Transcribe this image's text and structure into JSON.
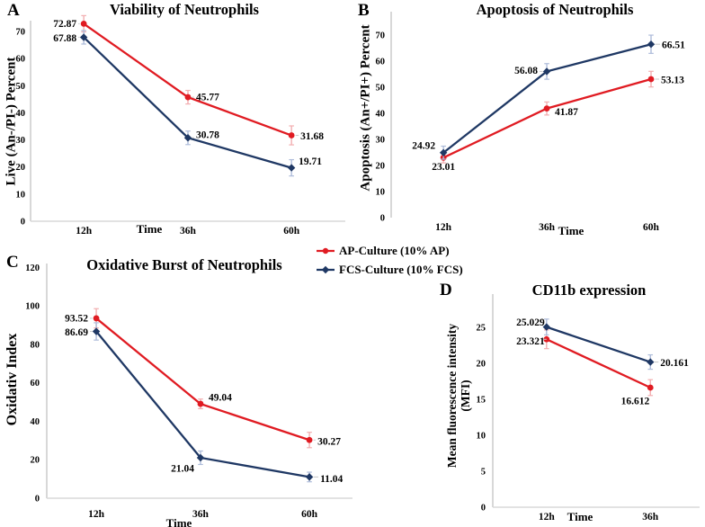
{
  "figure": {
    "background": "#ffffff",
    "legend": {
      "items": [
        {
          "key": "ap",
          "label": "AP-Culture (10% AP)"
        },
        {
          "key": "fcs",
          "label": "FCS-Culture (10% FCS)"
        }
      ]
    },
    "colors": {
      "ap": "#e01b22",
      "fcs": "#1f3864",
      "ap_error": "#f2aeb0",
      "fcs_error": "#aebcda",
      "axis": "#c4c4c4",
      "baseline": "#d9d9d9",
      "leader": "#c8c8c8",
      "text": "#000000"
    }
  },
  "chart_data": [
    {
      "type": "line",
      "panel": "A",
      "title": "Viability of Neutrophils",
      "xlabel": "Time",
      "ylabel": "Live (An-/PI-) Percent",
      "categories": [
        "12h",
        "36h",
        "60h"
      ],
      "ylim": [
        0,
        74
      ],
      "yticks": [
        0,
        10,
        20,
        30,
        40,
        50,
        60,
        70
      ],
      "grid": false,
      "legend_position": "center-of-figure",
      "series": [
        {
          "key": "ap",
          "name": "AP-Culture (10% AP)",
          "marker": "circle",
          "values": [
            72.87,
            45.77,
            31.68
          ],
          "errors": [
            3,
            2.5,
            3.5
          ],
          "labels": [
            "72.87",
            "45.77",
            "31.68"
          ],
          "label_pos": [
            {
              "a": "end",
              "dx": -8,
              "dy": 0
            },
            {
              "a": "start",
              "dx": 9,
              "dy": 0
            },
            {
              "a": "start",
              "dx": 10,
              "dy": 1
            }
          ]
        },
        {
          "key": "fcs",
          "name": "FCS-Culture (10% FCS)",
          "marker": "diamond",
          "values": [
            67.88,
            30.78,
            19.71
          ],
          "errors": [
            2.5,
            2.5,
            3
          ],
          "labels": [
            "67.88",
            "30.78",
            "19.71"
          ],
          "label_pos": [
            {
              "a": "end",
              "dx": -8,
              "dy": 1
            },
            {
              "a": "start",
              "dx": 9,
              "dy": -3
            },
            {
              "a": "start",
              "dx": 8,
              "dy": -7
            }
          ]
        }
      ]
    },
    {
      "type": "line",
      "panel": "B",
      "title": "Apoptosis of Neutrophils",
      "xlabel": "Time",
      "ylabel": "Apoptosis (An+/PI+) Percent",
      "categories": [
        "12h",
        "36h",
        "60h"
      ],
      "ylim": [
        0,
        79
      ],
      "yticks": [
        0,
        10,
        20,
        30,
        40,
        50,
        60,
        70
      ],
      "grid": false,
      "series": [
        {
          "key": "ap",
          "name": "AP-Culture (10% AP)",
          "marker": "circle",
          "values": [
            23.01,
            41.87,
            53.13
          ],
          "errors": [
            2,
            2.5,
            3
          ],
          "labels": [
            "23.01",
            "41.87",
            "53.13"
          ],
          "label_pos": [
            {
              "a": "middle",
              "dx": 0,
              "dy": 10
            },
            {
              "a": "start",
              "dx": 9,
              "dy": 4
            },
            {
              "a": "start",
              "dx": 11,
              "dy": 1
            }
          ]
        },
        {
          "key": "fcs",
          "name": "FCS-Culture (10% FCS)",
          "marker": "diamond",
          "values": [
            24.92,
            56.08,
            66.51
          ],
          "errors": [
            2.5,
            3,
            3.5
          ],
          "labels": [
            "24.92",
            "56.08",
            "66.51"
          ],
          "label_pos": [
            {
              "a": "end",
              "dx": -9,
              "dy": -8
            },
            {
              "a": "end",
              "dx": -10,
              "dy": -1
            },
            {
              "a": "start",
              "dx": 12,
              "dy": 1
            }
          ]
        }
      ]
    },
    {
      "type": "line",
      "panel": "C",
      "title": "Oxidative Burst of Neutrophils",
      "xlabel": "Time",
      "ylabel": "Oxidativ Index",
      "categories": [
        "12h",
        "36h",
        "60h"
      ],
      "ylim": [
        0,
        122
      ],
      "yticks": [
        0,
        20,
        40,
        60,
        80,
        100,
        120
      ],
      "grid": false,
      "series": [
        {
          "key": "ap",
          "name": "AP-Culture (10% AP)",
          "marker": "circle",
          "values": [
            93.52,
            49.04,
            30.27
          ],
          "errors": [
            5,
            2.5,
            4
          ],
          "labels": [
            "93.52",
            "49.04",
            "30.27"
          ],
          "label_pos": [
            {
              "a": "end",
              "dx": -9,
              "dy": 0
            },
            {
              "a": "start",
              "dx": 9,
              "dy": -7
            },
            {
              "a": "start",
              "dx": 9,
              "dy": 2
            }
          ]
        },
        {
          "key": "fcs",
          "name": "FCS-Culture (10% FCS)",
          "marker": "diamond",
          "values": [
            86.69,
            21.04,
            11.04
          ],
          "errors": [
            4.5,
            3.5,
            2.5
          ],
          "labels": [
            "86.69",
            "21.04",
            "11.04"
          ],
          "label_pos": [
            {
              "a": "end",
              "dx": -9,
              "dy": 1
            },
            {
              "a": "end",
              "dx": -7,
              "dy": 12
            },
            {
              "a": "start",
              "dx": 12,
              "dy": 2
            }
          ]
        }
      ]
    },
    {
      "type": "line",
      "panel": "D",
      "title": "CD11b expression",
      "xlabel": "Time",
      "ylabel": "Mean fluorescence intensity (MFI)",
      "ylabel_lines": [
        "Mean fluorescence intensity",
        "(MFI)"
      ],
      "categories": [
        "12h",
        "36h"
      ],
      "ylim": [
        0,
        29.6
      ],
      "yticks": [
        0,
        5,
        10,
        15,
        20,
        25
      ],
      "grid": false,
      "series": [
        {
          "key": "ap",
          "name": "AP-Culture (10% AP)",
          "marker": "circle",
          "values": [
            23.321,
            16.612
          ],
          "errors": [
            1.3,
            1.1
          ],
          "labels": [
            "23.321",
            "16.612"
          ],
          "label_pos": [
            {
              "a": "end",
              "dx": -2,
              "dy": 2
            },
            {
              "a": "end",
              "dx": -1,
              "dy": 15
            }
          ]
        },
        {
          "key": "fcs",
          "name": "FCS-Culture (10% FCS)",
          "marker": "diamond",
          "values": [
            25.029,
            20.161
          ],
          "errors": [
            1.1,
            1.0
          ],
          "labels": [
            "25.029",
            "20.161"
          ],
          "label_pos": [
            {
              "a": "end",
              "dx": -2,
              "dy": -5
            },
            {
              "a": "start",
              "dx": 11,
              "dy": 1
            }
          ]
        }
      ]
    }
  ]
}
